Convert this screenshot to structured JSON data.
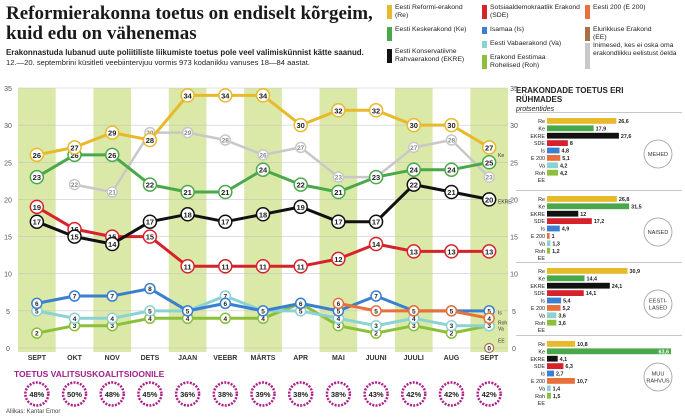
{
  "header": {
    "title": "Reformierakonna toetus on endiselt kõrgeim, kuid edu on vähenemas",
    "lead": "Erakonnastuda lubanud uute poliitiliste liikumiste toetus pole veel valimiskünnist kätte saanud.",
    "note": "12.—20. septembrini küsitleti veebiintervjuu vormis 973 kodanikku vanuses 18—84 aastat."
  },
  "legend": [
    {
      "label": "Eesti Reformi-erakond (Re)",
      "color": "#e8b92a"
    },
    {
      "label": "Sotsiaaldemokraatlik Erakond (SDE)",
      "color": "#d6222a"
    },
    {
      "label": "Eesti 200 (E 200)",
      "color": "#e8703a"
    },
    {
      "label": "Eesti Keskerakond (Ke)",
      "color": "#4aa84a"
    },
    {
      "label": "Isamaa (Is)",
      "color": "#3a7fd0"
    },
    {
      "label": "Elurikkuse Erakond (EE)",
      "color": "#a87046"
    },
    {
      "label": "Eesti Konservatiivne Rahvaerakond (EKRE)",
      "color": "#111111"
    },
    {
      "label": "Eesti Vabaerakond (Va)",
      "color": "#8cd2d2"
    },
    {
      "label": "Inimesed, kes ei oska oma erakondlikku eelistust öelda",
      "color": "#c8c8c8"
    },
    {
      "label": "Erakond Eestimaa Rohelised (Roh)",
      "color": "#8cbf3a"
    }
  ],
  "coalition": {
    "label": "TOETUS VALITSUSKOALITSIOONILE",
    "values": [
      "48%",
      "50%",
      "48%",
      "45%",
      "36%",
      "38%",
      "39%",
      "38%",
      "38%",
      "43%",
      "42%",
      "42%",
      "42%"
    ]
  },
  "source": "Allikas: Kantar Emor",
  "chart_data": [
    {
      "type": "line",
      "x": [
        "SEPT",
        "OKT",
        "NOV",
        "DETS",
        "JAAN",
        "VEEBR",
        "MÄRTS",
        "APR",
        "MAI",
        "JUUNI",
        "JUULI",
        "AUG",
        "SEPT"
      ],
      "ylim": [
        0,
        35
      ],
      "yticks": [
        0,
        5,
        10,
        15,
        20,
        25,
        30,
        35
      ],
      "series": [
        {
          "name": "Re",
          "color": "#e8b92a",
          "values": [
            26,
            27,
            29,
            28,
            34,
            34,
            34,
            30,
            32,
            32,
            30,
            30,
            27
          ]
        },
        {
          "name": "Ke",
          "color": "#4aa84a",
          "values": [
            23,
            26,
            26,
            22,
            21,
            21,
            24,
            22,
            21,
            23,
            24,
            24,
            25
          ]
        },
        {
          "name": "EKRE",
          "color": "#111111",
          "values": [
            17,
            15,
            14,
            17,
            18,
            17,
            18,
            19,
            17,
            17,
            22,
            21,
            20
          ]
        },
        {
          "name": "SDE",
          "color": "#d6222a",
          "values": [
            19,
            16,
            15,
            15,
            11,
            11,
            11,
            11,
            12,
            14,
            13,
            13,
            13
          ]
        },
        {
          "name": "Is",
          "color": "#3a7fd0",
          "values": [
            6,
            7,
            7,
            8,
            5,
            6,
            5,
            6,
            5,
            7,
            5,
            5,
            5
          ]
        },
        {
          "name": "Va",
          "color": "#8cd2d2",
          "values": [
            5,
            4,
            4,
            5,
            5,
            7,
            5,
            5,
            4,
            3,
            4,
            3,
            3
          ]
        },
        {
          "name": "Roh",
          "color": "#8cbf3a",
          "values": [
            2,
            3,
            3,
            4,
            4,
            4,
            4,
            6,
            3,
            2,
            3,
            2,
            3
          ]
        },
        {
          "name": "E 200",
          "color": "#e8703a",
          "values": [
            null,
            null,
            null,
            null,
            null,
            null,
            null,
            null,
            6,
            5,
            5,
            5,
            4
          ]
        },
        {
          "name": "",
          "color": "#c8c8c8",
          "values": [
            null,
            22,
            21,
            29,
            29,
            28,
            26,
            27,
            23,
            23,
            27,
            28,
            23
          ]
        },
        {
          "name": "EE",
          "color": "#a87046",
          "values": [
            null,
            null,
            null,
            null,
            null,
            null,
            null,
            null,
            null,
            null,
            null,
            null,
            0
          ]
        }
      ],
      "point_labels": [
        "26",
        "27",
        "29",
        "28",
        "34",
        "34",
        "34",
        "30",
        "32",
        "32",
        "30",
        "30",
        "27",
        "23",
        "26",
        "26",
        "22",
        "21",
        "21",
        "24",
        "22",
        "21",
        "23",
        "24",
        "24",
        "25",
        "17",
        "15",
        "14",
        "17",
        "18",
        "17",
        "18",
        "19",
        "17",
        "17",
        "22",
        "21",
        "20",
        "19",
        "16",
        "15",
        "15",
        "11",
        "11",
        "11",
        "11",
        "12",
        "14",
        "13",
        "13",
        "13",
        "6",
        "7",
        "7",
        "8",
        "5",
        "6",
        "5",
        "6",
        "5",
        "7",
        "5",
        "5",
        "5",
        "4",
        "3",
        "2",
        "22",
        "21",
        "29",
        "28",
        "26",
        "27",
        "23",
        "0"
      ],
      "end_tags": [
        "Ke",
        "Va",
        "Is",
        "Roh",
        "EE",
        "EKRE"
      ]
    },
    {
      "type": "bar",
      "title": "ERAKONDADE TOETUS ERI RÜHMADES",
      "subtitle": "protsentides",
      "groups": [
        {
          "name": "MEHED",
          "categories": [
            "Re",
            "Ke",
            "EKRE",
            "SDE",
            "Is",
            "E 200",
            "Va",
            "Roh",
            "EE"
          ],
          "values": [
            26.6,
            17.9,
            27.6,
            8,
            4.8,
            5.1,
            4.2,
            4.2,
            null
          ],
          "labels": [
            "26,6",
            "17,9",
            "27,6",
            "8",
            "4,8",
            "5,1",
            "4,2",
            "4,2",
            ""
          ]
        },
        {
          "name": "NAISED",
          "categories": [
            "Re",
            "Ke",
            "EKRE",
            "SDE",
            "Is",
            "E 200",
            "Va",
            "Roh",
            "EE"
          ],
          "values": [
            26.8,
            31.5,
            12,
            17.2,
            4.9,
            1.0,
            1.3,
            1.2,
            null
          ],
          "labels": [
            "26,8",
            "31,5",
            "12",
            "17,2",
            "4,9",
            "1",
            "1,3",
            "1,2",
            ""
          ]
        },
        {
          "name": "EESTI-LASED",
          "categories": [
            "Re",
            "Ke",
            "EKRE",
            "SDE",
            "Is",
            "E 200",
            "Va",
            "Roh",
            "EE"
          ],
          "values": [
            30.9,
            14.4,
            24.1,
            14.1,
            5.4,
            5.2,
            3.6,
            3.6,
            null
          ],
          "labels": [
            "30,9",
            "14,4",
            "24,1",
            "14,1",
            "5,4",
            "5,2",
            "3,6",
            "3,6",
            ""
          ]
        },
        {
          "name": "MUU RAHVUS",
          "categories": [
            "Re",
            "Ke",
            "EKRE",
            "SDE",
            "Is",
            "E 200",
            "Va",
            "Roh",
            "EE"
          ],
          "values": [
            10.8,
            63.6,
            4.1,
            6.3,
            2.7,
            10.7,
            1.4,
            1.5,
            null
          ],
          "labels": [
            "10,8",
            "63,6",
            "4,1",
            "6,3",
            "2,7",
            "10,7",
            "1,4",
            "1,5",
            ""
          ]
        }
      ]
    }
  ]
}
